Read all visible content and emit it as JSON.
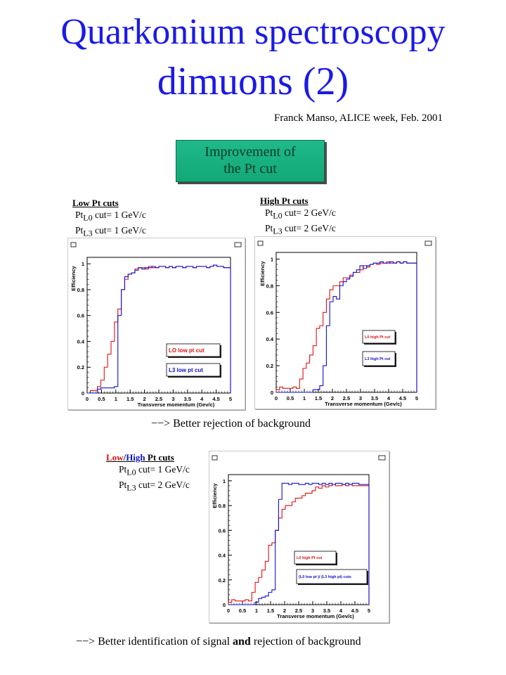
{
  "title_line1": "Quarkonium spectroscopy",
  "title_line2": "dimuons (2)",
  "author": "Franck Manso, ALICE week, Feb. 2001",
  "box": {
    "line1": "Improvement of",
    "line2": "the Pt cut"
  },
  "low_block": {
    "header": "Low Pt cuts",
    "l0_pre": "Pt",
    "l0_sub": "L0",
    "l0_val": " cut= 1 GeV/c",
    "l3_pre": "Pt",
    "l3_sub": "L3",
    "l3_val": " cut= 1 GeV/c"
  },
  "high_block": {
    "header": "High Pt cuts",
    "l0_pre": "Pt",
    "l0_sub": "L0",
    "l0_val": " cut= 2 GeV/c",
    "l3_pre": "Pt",
    "l3_sub": "L3",
    "l3_val": " cut= 2 GeV/c"
  },
  "mixed_block": {
    "low": "Low",
    "slash": "/",
    "high": "High",
    "rest": " Pt cuts",
    "l0_pre": "Pt",
    "l0_sub": "L0",
    "l0_val": " cut= 1 GeV/c",
    "l3_pre": "Pt",
    "l3_sub": "L3",
    "l3_val": " cut= 2 GeV/c"
  },
  "note1": "−−> Better rejection of background",
  "note2_a": "−−> Better identification of signal ",
  "note2_b": "and",
  "note2_c": " rejection of background",
  "colors": {
    "title": "#1a1ae6",
    "red": "#e01010",
    "blue": "#1010d0",
    "box_green": "#1fb98a"
  },
  "chart_data": [
    {
      "type": "line",
      "xlabel": "Transverse momentum (Gev/c)",
      "ylabel": "Efficiency",
      "xlim": [
        0,
        5
      ],
      "ylim": [
        0,
        1.05
      ],
      "xticks": [
        "0",
        "0.5",
        "1",
        "1.5",
        "2",
        "2.5",
        "3",
        "3.5",
        "4",
        "4.5",
        "5"
      ],
      "yticks": [
        "0",
        "0.2",
        "0.4",
        "0.6",
        "0.8",
        "1"
      ],
      "legend": [
        "LO  low pt cut",
        "L3 low pt cut"
      ],
      "series": [
        {
          "name": "LO  low pt cut",
          "color": "#e01010",
          "values": [
            0,
            0.02,
            0.02,
            0.05,
            0.1,
            0.2,
            0.3,
            0.4,
            0.55,
            0.65,
            0.8,
            0.88,
            0.92,
            0.93,
            0.96,
            0.97,
            0.97,
            0.96,
            0.98,
            0.97,
            0.97,
            0.98,
            0.98,
            0.97,
            0.98,
            0.97,
            0.98,
            0.98,
            0.97,
            0.98,
            0.98,
            0.97,
            0.98,
            0.98,
            0.98,
            0.97,
            0.98,
            0.99,
            0.98,
            0.98,
            0.97,
            0.97
          ]
        },
        {
          "name": "L3 low pt cut",
          "color": "#1010d0",
          "values": [
            0,
            0.0,
            0.0,
            0.03,
            0.04,
            0.04,
            0.04,
            0.04,
            0.05,
            0.6,
            0.8,
            0.9,
            0.92,
            0.93,
            0.95,
            0.97,
            0.96,
            0.97,
            0.97,
            0.98,
            0.97,
            0.98,
            0.98,
            0.97,
            0.98,
            0.97,
            0.98,
            0.98,
            0.97,
            0.98,
            0.98,
            0.97,
            0.98,
            0.98,
            0.98,
            0.97,
            0.98,
            0.99,
            0.98,
            0.98,
            0.97,
            0.97
          ]
        }
      ]
    },
    {
      "type": "line",
      "xlabel": "Transverse momentum (Gev/c)",
      "ylabel": "Efficiency",
      "xlim": [
        0,
        5
      ],
      "ylim": [
        0,
        1.05
      ],
      "xticks": [
        "0",
        "0.5",
        "1",
        "1.5",
        "2",
        "2.5",
        "3",
        "3.5",
        "4",
        "4.5",
        "5"
      ],
      "yticks": [
        "0",
        "0.2",
        "0.4",
        "0.6",
        "0.8",
        "1"
      ],
      "legend": [
        "L0  high Pt cut",
        "L3  high Pt cut"
      ],
      "series": [
        {
          "name": "L0  high Pt cut",
          "color": "#e01010",
          "values": [
            0.02,
            0.04,
            0.03,
            0.03,
            0.03,
            0.04,
            0.03,
            0.1,
            0.18,
            0.22,
            0.28,
            0.35,
            0.48,
            0.5,
            0.6,
            0.7,
            0.77,
            0.8,
            0.8,
            0.83,
            0.86,
            0.86,
            0.88,
            0.9,
            0.9,
            0.92,
            0.95,
            0.94,
            0.96,
            0.97,
            0.96,
            0.97,
            0.97,
            0.98,
            0.97,
            0.97,
            0.98,
            0.97,
            0.98,
            0.97,
            0.97,
            0.97
          ]
        },
        {
          "name": "L3  high Pt cut",
          "color": "#1010d0",
          "values": [
            0,
            0,
            0,
            0,
            0,
            0,
            0,
            0,
            0,
            0,
            0,
            0.02,
            0.02,
            0.05,
            0.2,
            0.5,
            0.68,
            0.72,
            0.7,
            0.8,
            0.83,
            0.85,
            0.87,
            0.9,
            0.92,
            0.95,
            0.93,
            0.95,
            0.96,
            0.97,
            0.97,
            0.98,
            0.97,
            0.97,
            0.98,
            0.97,
            0.98,
            0.97,
            0.98,
            0.97,
            0.97,
            0.97
          ]
        }
      ]
    },
    {
      "type": "line",
      "xlabel": "Transverse momentum (Gev/c)",
      "ylabel": "Efficiency",
      "xlim": [
        0,
        5
      ],
      "ylim": [
        0,
        1.05
      ],
      "xticks": [
        "0",
        "0.5",
        "1",
        "1.5",
        "2",
        "2.5",
        "3",
        "3.5",
        "4",
        "4.5",
        "5"
      ],
      "yticks": [
        "0",
        "0.2",
        "0.4",
        "0.6",
        "0.8",
        "1"
      ],
      "legend": [
        "L0 high Pt cut",
        "(L0 low pt )/ (L3 high pt) cuts"
      ],
      "series": [
        {
          "name": "L0 high Pt cut",
          "color": "#e01010",
          "values": [
            0.02,
            0.04,
            0.03,
            0.03,
            0.03,
            0.04,
            0.03,
            0.1,
            0.18,
            0.22,
            0.28,
            0.35,
            0.48,
            0.5,
            0.6,
            0.7,
            0.77,
            0.8,
            0.8,
            0.83,
            0.86,
            0.86,
            0.88,
            0.9,
            0.9,
            0.92,
            0.95,
            0.94,
            0.96,
            0.95,
            0.96,
            0.97,
            0.96,
            0.96,
            0.97,
            0.96,
            0.97,
            0.96,
            0.96,
            0.96,
            0.96,
            0.96
          ]
        },
        {
          "name": "(L0 low pt )/ (L3 high pt) cuts",
          "color": "#1010d0",
          "values": [
            0,
            0,
            0,
            0,
            0,
            0,
            0,
            0,
            0.02,
            0.05,
            0.06,
            0.07,
            0.1,
            0.12,
            0.6,
            0.85,
            0.98,
            0.98,
            0.97,
            0.98,
            0.98,
            0.97,
            0.97,
            0.98,
            0.97,
            0.98,
            0.98,
            0.97,
            0.98,
            0.97,
            0.98,
            0.97,
            0.98,
            0.98,
            0.97,
            0.98,
            0.97,
            0.98,
            0.98,
            0.97,
            0.97,
            0.97
          ]
        }
      ]
    }
  ]
}
